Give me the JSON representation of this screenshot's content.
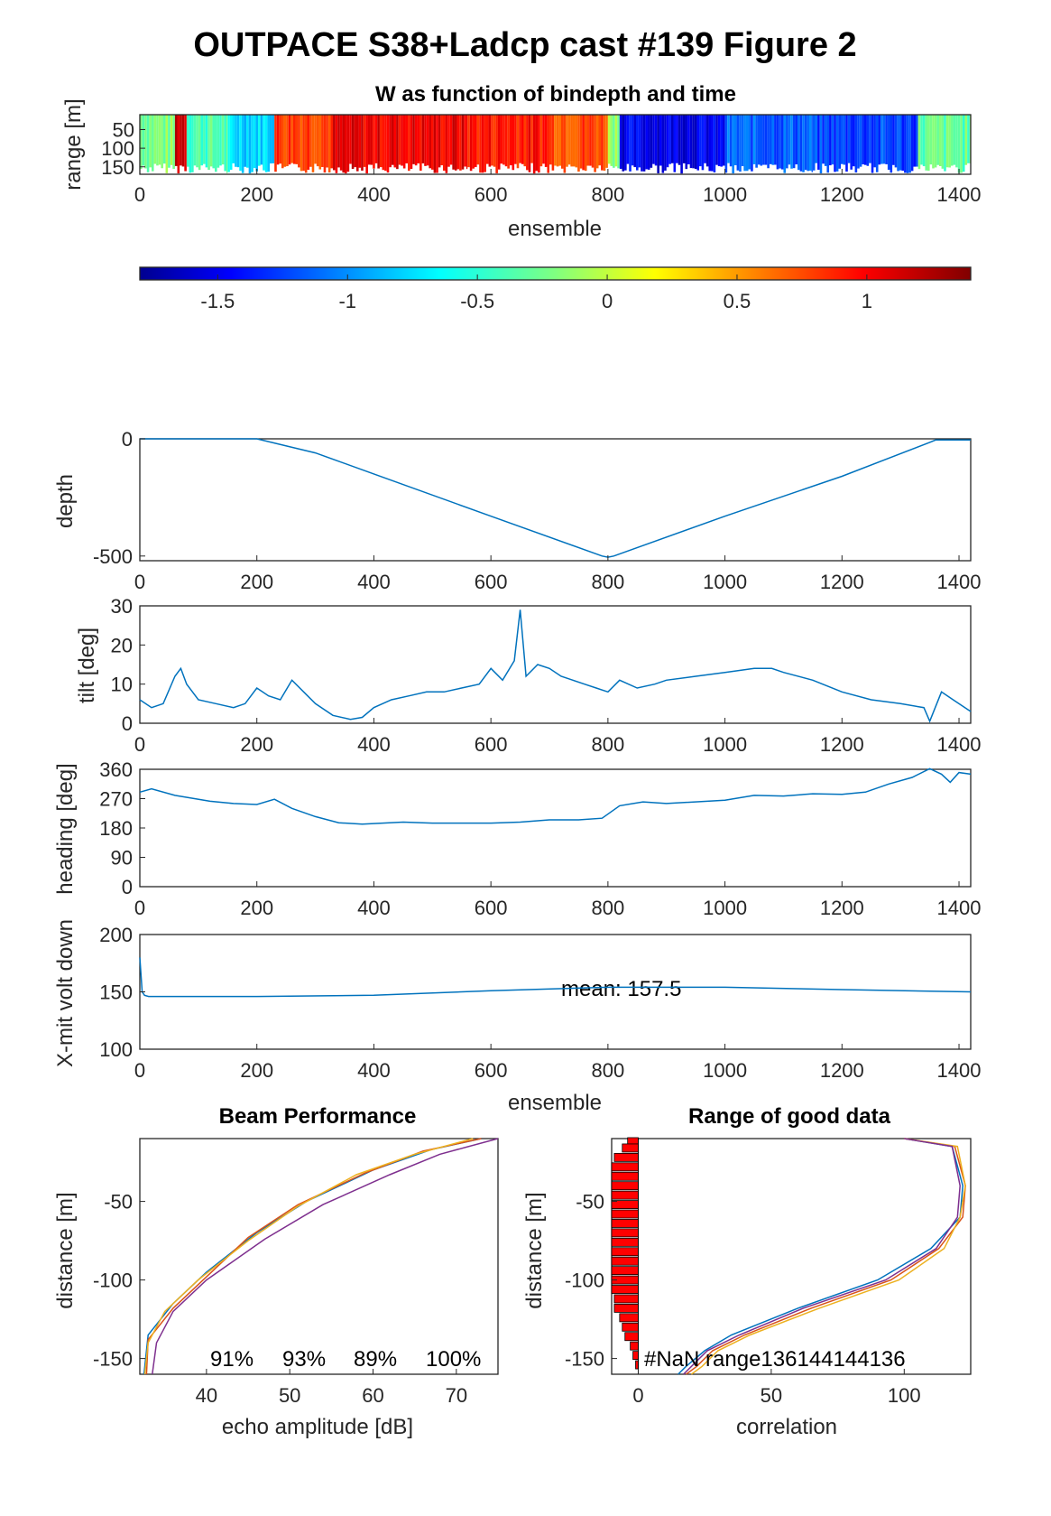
{
  "figure": {
    "title": "OUTPACE S38+Ladcp cast #139 Figure 2"
  },
  "colors": {
    "line": "#0072bd",
    "beam1": "#0072bd",
    "beam2": "#d95319",
    "beam3": "#edb120",
    "beam4": "#7e2f8e",
    "nan_bar": "#ff0000",
    "colormap": "jet"
  },
  "chart_data": [
    {
      "id": "w_image",
      "type": "heatmap",
      "title": "W as function of bindepth and time",
      "xlabel": "ensemble",
      "ylabel": "range [m]",
      "xlim": [
        0,
        1420
      ],
      "ylim": [
        10,
        170
      ],
      "y_reversed": true,
      "xticks": [
        0,
        200,
        400,
        600,
        800,
        1000,
        1200,
        1400
      ],
      "yticks": [
        50,
        100,
        150
      ],
      "segments": [
        {
          "x": [
            0,
            60
          ],
          "w": -0.2
        },
        {
          "x": [
            60,
            80
          ],
          "w": 1.2
        },
        {
          "x": [
            80,
            150
          ],
          "w": -0.35
        },
        {
          "x": [
            150,
            230
          ],
          "w": -0.7
        },
        {
          "x": [
            230,
            330
          ],
          "w": 0.85
        },
        {
          "x": [
            330,
            560
          ],
          "w": 1.05
        },
        {
          "x": [
            560,
            700
          ],
          "w": 0.95
        },
        {
          "x": [
            700,
            800
          ],
          "w": 0.8
        },
        {
          "x": [
            800,
            820
          ],
          "w": -0.1
        },
        {
          "x": [
            820,
            1000
          ],
          "w": -1.45
        },
        {
          "x": [
            1000,
            1150
          ],
          "w": -1.1
        },
        {
          "x": [
            1150,
            1330
          ],
          "w": -1.2
        },
        {
          "x": [
            1330,
            1420
          ],
          "w": -0.3
        }
      ]
    },
    {
      "id": "colorbar",
      "type": "colorbar",
      "colormap": "jet",
      "clim": [
        -1.8,
        1.4
      ],
      "ticks": [
        -1.5,
        -1,
        -0.5,
        0,
        0.5,
        1
      ],
      "tick_labels": [
        "-1.5",
        "-1",
        "-0.5",
        "0",
        "0.5",
        "1"
      ]
    },
    {
      "id": "depth",
      "type": "line",
      "ylabel": "depth",
      "xlim": [
        0,
        1420
      ],
      "ylim": [
        -520,
        0
      ],
      "xticks": [
        0,
        200,
        400,
        600,
        800,
        1000,
        1200,
        1400
      ],
      "yticks": [
        -500,
        0
      ],
      "x": [
        0,
        200,
        300,
        400,
        600,
        790,
        800,
        810,
        1000,
        1200,
        1350,
        1360,
        1420
      ],
      "y": [
        0,
        0,
        -60,
        -150,
        -330,
        -500,
        -505,
        -500,
        -330,
        -160,
        -15,
        -5,
        -5
      ]
    },
    {
      "id": "tilt",
      "type": "line",
      "ylabel": "tilt [deg]",
      "xlim": [
        0,
        1420
      ],
      "ylim": [
        0,
        30
      ],
      "xticks": [
        0,
        200,
        400,
        600,
        800,
        1000,
        1200,
        1400
      ],
      "yticks": [
        0,
        10,
        20,
        30
      ],
      "x": [
        0,
        20,
        40,
        60,
        70,
        80,
        100,
        130,
        160,
        180,
        200,
        220,
        240,
        260,
        280,
        300,
        330,
        360,
        380,
        400,
        430,
        460,
        490,
        520,
        550,
        580,
        600,
        620,
        640,
        650,
        660,
        680,
        700,
        720,
        740,
        760,
        780,
        800,
        820,
        850,
        880,
        900,
        950,
        1000,
        1050,
        1080,
        1100,
        1150,
        1200,
        1250,
        1300,
        1340,
        1350,
        1370,
        1390,
        1420
      ],
      "y": [
        6,
        4,
        5,
        12,
        14,
        10,
        6,
        5,
        4,
        5,
        9,
        7,
        6,
        11,
        8,
        5,
        2,
        1,
        1.5,
        4,
        6,
        7,
        8,
        8,
        9,
        10,
        14,
        11,
        16,
        29,
        12,
        15,
        14,
        12,
        11,
        10,
        9,
        8,
        11,
        9,
        10,
        11,
        12,
        13,
        14,
        14,
        13,
        11,
        8,
        6,
        5,
        4,
        0.5,
        8,
        6,
        3
      ]
    },
    {
      "id": "heading",
      "type": "line",
      "ylabel": "heading [deg]",
      "xlim": [
        0,
        1420
      ],
      "ylim": [
        0,
        360
      ],
      "xticks": [
        0,
        200,
        400,
        600,
        800,
        1000,
        1200,
        1400
      ],
      "yticks": [
        0,
        90,
        180,
        270,
        360
      ],
      "x": [
        0,
        20,
        60,
        120,
        160,
        200,
        230,
        260,
        300,
        340,
        380,
        450,
        500,
        550,
        600,
        650,
        700,
        750,
        790,
        820,
        860,
        900,
        1000,
        1050,
        1100,
        1150,
        1200,
        1240,
        1280,
        1320,
        1350,
        1370,
        1385,
        1400,
        1420
      ],
      "y": [
        290,
        300,
        280,
        262,
        255,
        252,
        268,
        240,
        215,
        196,
        192,
        198,
        195,
        195,
        195,
        198,
        205,
        205,
        210,
        248,
        260,
        255,
        265,
        280,
        278,
        285,
        283,
        290,
        315,
        335,
        362,
        345,
        320,
        350,
        345
      ]
    },
    {
      "id": "xmit",
      "type": "line",
      "ylabel": "X-mit volt down",
      "xlabel": "ensemble",
      "annotation": "mean: 157.5",
      "xlim": [
        0,
        1420
      ],
      "ylim": [
        100,
        200
      ],
      "xticks": [
        0,
        200,
        400,
        600,
        800,
        1000,
        1200,
        1400
      ],
      "yticks": [
        100,
        150,
        200
      ],
      "x": [
        0,
        2,
        4,
        8,
        15,
        200,
        400,
        600,
        800,
        1000,
        1200,
        1420
      ],
      "y": [
        180,
        165,
        150,
        147,
        146,
        146,
        147,
        151,
        154,
        154,
        152,
        150
      ]
    },
    {
      "id": "beam",
      "type": "line",
      "title": "Beam Performance",
      "xlabel": "echo amplitude [dB]",
      "ylabel": "distance [m]",
      "xlim": [
        32,
        75
      ],
      "ylim": [
        -160,
        -10
      ],
      "xticks": [
        40,
        50,
        60,
        70
      ],
      "yticks": [
        -150,
        -100,
        -50
      ],
      "annotations": [
        "91%",
        "93%",
        "89%",
        "100%"
      ],
      "series": [
        {
          "x": [
            73,
            67,
            60,
            52,
            46,
            40,
            36,
            33,
            32.5
          ],
          "y": [
            -10,
            -17,
            -30,
            -50,
            -70,
            -95,
            -115,
            -135,
            -160
          ]
        },
        {
          "x": [
            73,
            66,
            59,
            51,
            45,
            40,
            36,
            33,
            32.8
          ],
          "y": [
            -10,
            -18,
            -32,
            -52,
            -73,
            -98,
            -118,
            -138,
            -160
          ]
        },
        {
          "x": [
            72,
            65,
            58,
            51,
            45,
            39,
            35,
            33,
            32.6
          ],
          "y": [
            -10,
            -20,
            -33,
            -53,
            -75,
            -100,
            -120,
            -140,
            -160
          ]
        },
        {
          "x": [
            75,
            68,
            62,
            54,
            47,
            40,
            36,
            34,
            33.5
          ],
          "y": [
            -10,
            -20,
            -33,
            -52,
            -74,
            -100,
            -120,
            -140,
            -160
          ]
        }
      ]
    },
    {
      "id": "range_good",
      "type": "line",
      "title": "Range of good data",
      "xlabel": "correlation",
      "ylabel": "distance [m]",
      "xlim": [
        -10,
        125
      ],
      "ylim": [
        -160,
        -10
      ],
      "xticks": [
        0,
        50,
        100
      ],
      "yticks": [
        -150,
        -100,
        -50
      ],
      "annotation_label": "#NaN range",
      "annotation_values": [
        "136",
        "144",
        "144",
        "136"
      ],
      "nan_bars": {
        "y": [
          -12,
          -16,
          -22,
          -28,
          -34,
          -40,
          -46,
          -52,
          -58,
          -64,
          -70,
          -76,
          -82,
          -88,
          -94,
          -100,
          -106,
          -112,
          -118,
          -124,
          -130,
          -136,
          -142,
          -148,
          -154
        ],
        "width": [
          4,
          6,
          9,
          10,
          10,
          10,
          10,
          10,
          10,
          10,
          10,
          10,
          10,
          10,
          10,
          10,
          10,
          9,
          9,
          7,
          6,
          5,
          3,
          2,
          1
        ]
      },
      "series": [
        {
          "x": [
            100,
            118,
            122,
            121,
            110,
            90,
            60,
            35,
            25,
            18,
            15
          ],
          "y": [
            -10,
            -15,
            -40,
            -60,
            -80,
            -100,
            -118,
            -135,
            -145,
            -155,
            -160
          ]
        },
        {
          "x": [
            100,
            119,
            123,
            122,
            113,
            95,
            65,
            40,
            28,
            22,
            18
          ],
          "y": [
            -10,
            -15,
            -40,
            -60,
            -80,
            -100,
            -118,
            -135,
            -145,
            -155,
            -160
          ]
        },
        {
          "x": [
            100,
            120,
            123,
            121,
            115,
            98,
            68,
            42,
            30,
            24,
            20
          ],
          "y": [
            -10,
            -15,
            -40,
            -60,
            -80,
            -100,
            -118,
            -135,
            -145,
            -155,
            -160
          ]
        },
        {
          "x": [
            100,
            118,
            121,
            120,
            112,
            93,
            62,
            38,
            26,
            20,
            17
          ],
          "y": [
            -10,
            -15,
            -40,
            -60,
            -80,
            -100,
            -118,
            -135,
            -145,
            -155,
            -160
          ]
        }
      ]
    }
  ]
}
